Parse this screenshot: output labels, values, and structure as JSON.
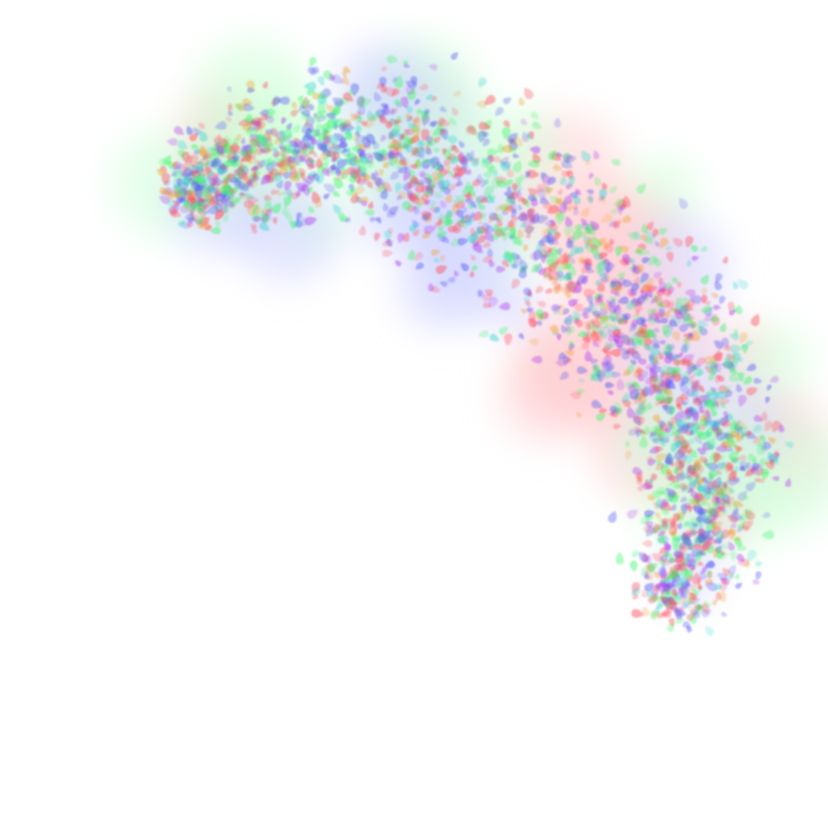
{
  "image": {
    "description_type": "abstract particle cloud",
    "background_color": "#ffffff",
    "palette": {
      "red": "#ff4d5e",
      "green": "#3df56a",
      "blue": "#5a5cf2",
      "magenta": "#b03cf0",
      "orange": "#f2a23a",
      "cyan": "#3ad6d0"
    },
    "particle_shape": "teardrop",
    "particle_opacity": 0.35,
    "halo_colors": [
      "#ffd0d4",
      "#cfffd8",
      "#d4d6ff"
    ]
  }
}
